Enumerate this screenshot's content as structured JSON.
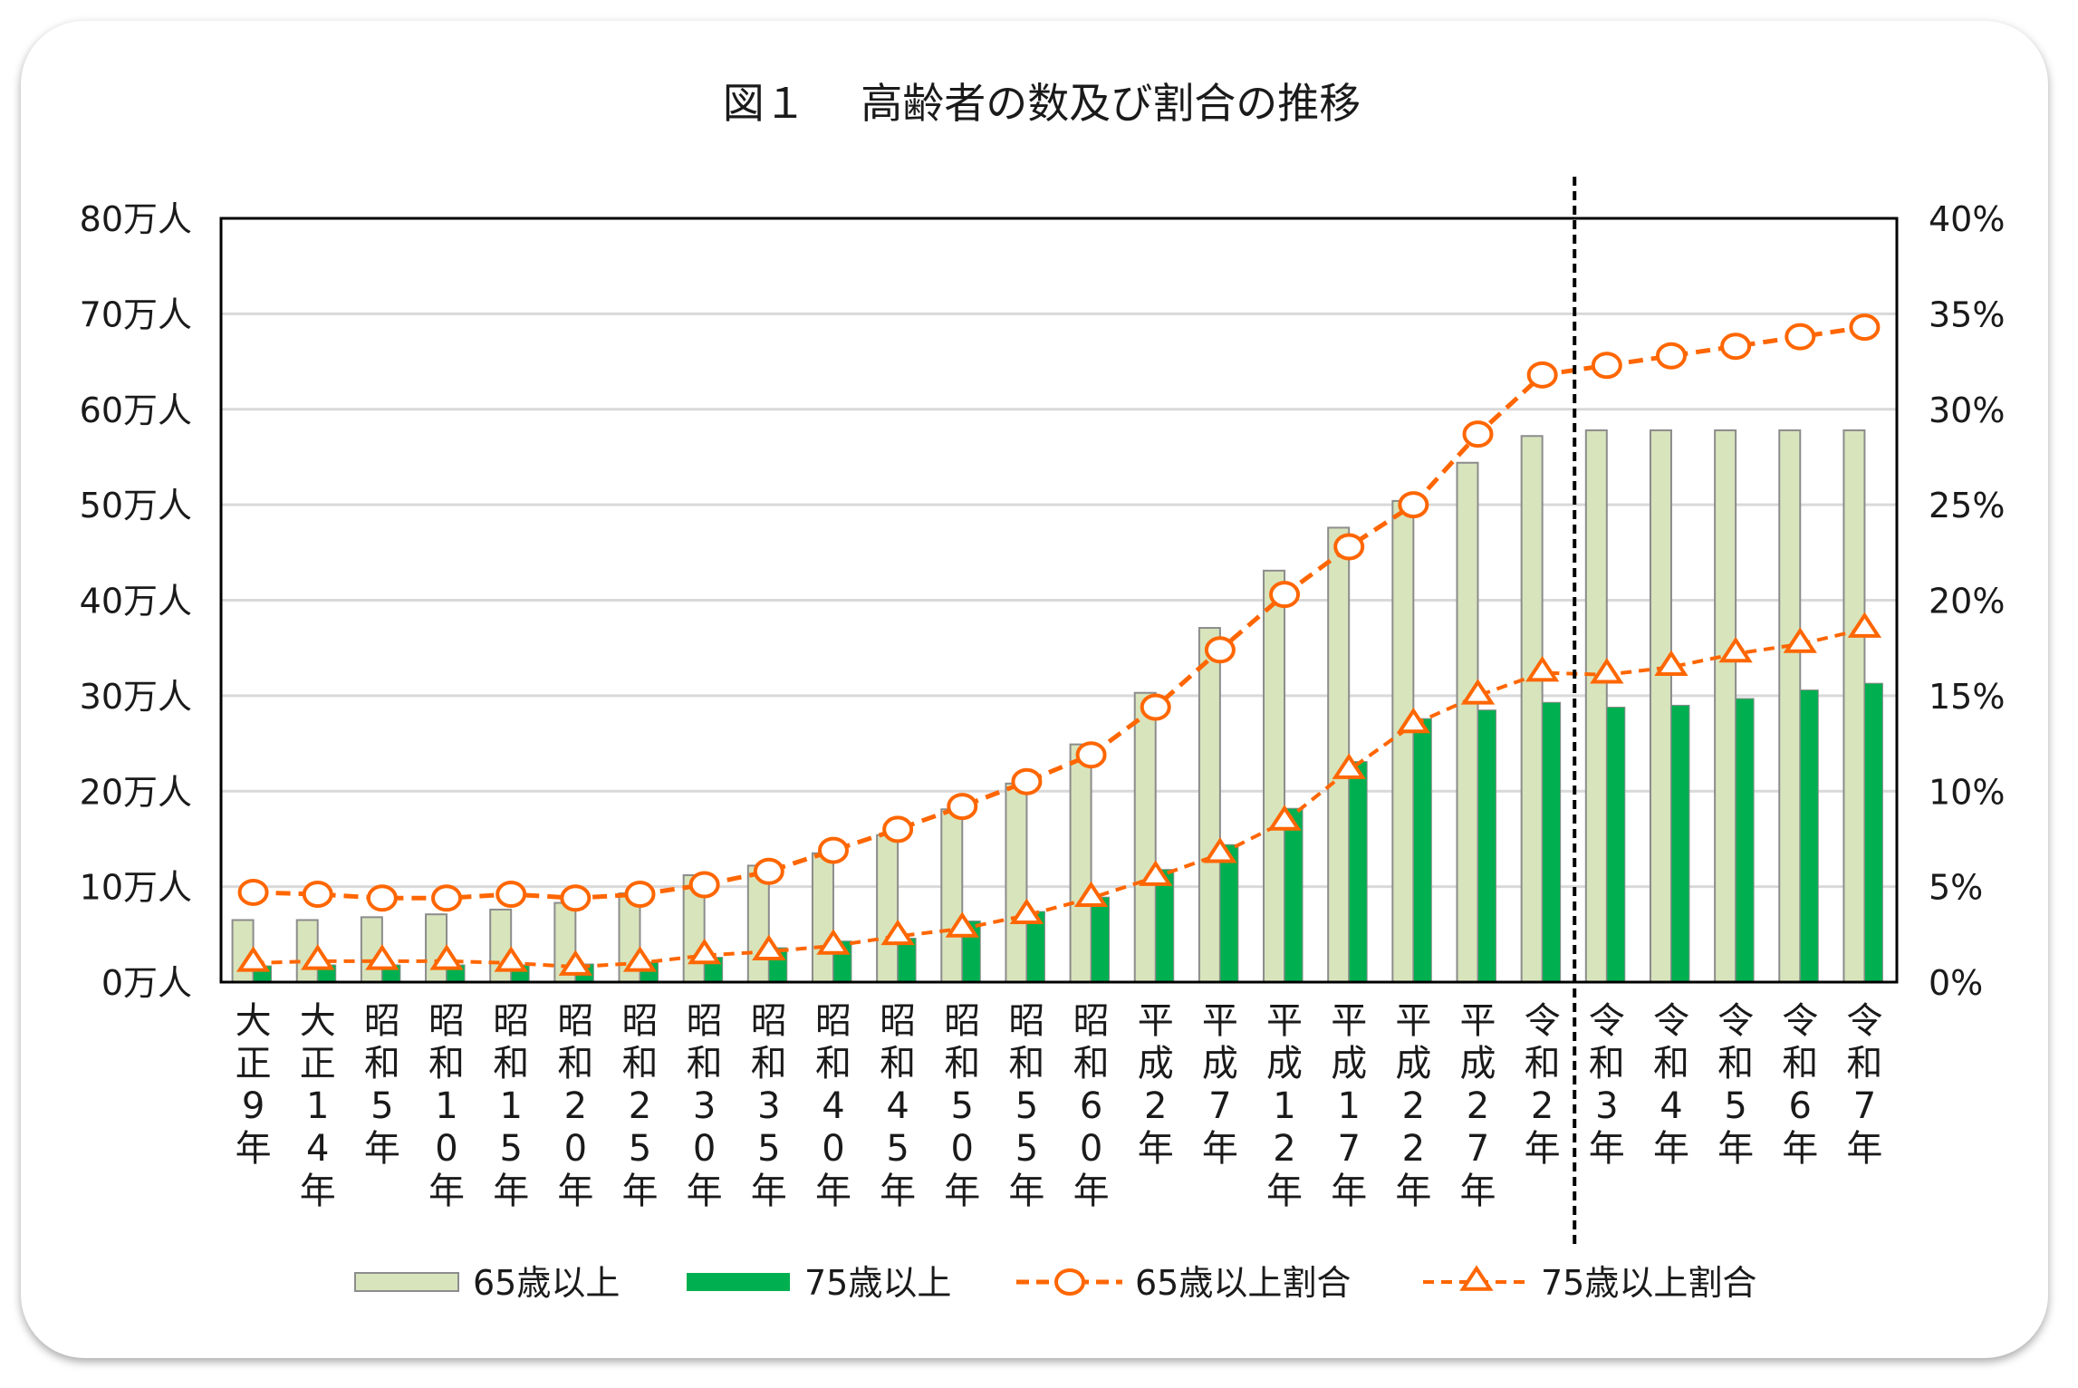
{
  "chart_data": {
    "type": "bar",
    "title": "図１　 高齢者の数及び割合の推移",
    "categories": [
      "大正9年",
      "大正14年",
      "昭和5年",
      "昭和10年",
      "昭和15年",
      "昭和20年",
      "昭和25年",
      "昭和30年",
      "昭和35年",
      "昭和40年",
      "昭和45年",
      "昭和50年",
      "昭和55年",
      "昭和60年",
      "平成2年",
      "平成7年",
      "平成12年",
      "平成17年",
      "平成22年",
      "平成27年",
      "令和2年",
      "令和3年",
      "令和4年",
      "令和5年",
      "令和6年",
      "令和7年"
    ],
    "y_left": {
      "ylim": [
        0,
        80
      ],
      "ticks": [
        "0万人",
        "10万人",
        "20万人",
        "30万人",
        "40万人",
        "50万人",
        "60万人",
        "70万人",
        "80万人"
      ]
    },
    "y_right": {
      "ylim": [
        0,
        40
      ],
      "ticks": [
        "0%",
        "5%",
        "10%",
        "15%",
        "20%",
        "25%",
        "30%",
        "35%",
        "40%"
      ]
    },
    "grid": true,
    "legend_position": "bottom",
    "divider_after_category": "令和2年",
    "series": [
      {
        "name": "65歳以上",
        "type": "bar",
        "axis": "left",
        "color": "#d8e4bc",
        "values": [
          6.5,
          6.5,
          6.8,
          7.1,
          7.6,
          8.3,
          9.3,
          11.2,
          12.2,
          13.5,
          15.4,
          18.1,
          20.8,
          24.9,
          30.3,
          37.1,
          43.1,
          47.6,
          50.4,
          54.4,
          57.2,
          57.8,
          57.8,
          57.8,
          57.8,
          57.8
        ]
      },
      {
        "name": "75歳以上",
        "type": "bar",
        "axis": "left",
        "color": "#00b050",
        "values": [
          1.7,
          1.8,
          1.8,
          1.8,
          1.8,
          1.9,
          2.1,
          2.6,
          3.6,
          4.3,
          4.6,
          6.4,
          7.4,
          8.9,
          11.8,
          14.4,
          18.2,
          23.1,
          27.6,
          28.5,
          29.3,
          28.8,
          29.0,
          29.7,
          30.6,
          31.3
        ]
      },
      {
        "name": "65歳以上割合",
        "type": "line",
        "axis": "right",
        "marker": "circle",
        "color": "#ff6600",
        "values": [
          4.7,
          4.6,
          4.4,
          4.4,
          4.6,
          4.4,
          4.6,
          5.1,
          5.8,
          6.9,
          8.0,
          9.2,
          10.5,
          11.9,
          14.4,
          17.4,
          20.3,
          22.8,
          25.0,
          28.7,
          31.8,
          32.3,
          32.8,
          33.3,
          33.8,
          34.3
        ]
      },
      {
        "name": "75歳以上割合",
        "type": "line",
        "axis": "right",
        "marker": "triangle",
        "color": "#ff6600",
        "values": [
          1.0,
          1.1,
          1.1,
          1.1,
          1.0,
          0.8,
          1.0,
          1.4,
          1.6,
          1.9,
          2.4,
          2.8,
          3.5,
          4.4,
          5.5,
          6.7,
          8.4,
          11.1,
          13.5,
          15.0,
          16.2,
          16.1,
          16.5,
          17.2,
          17.7,
          18.5
        ]
      }
    ]
  }
}
